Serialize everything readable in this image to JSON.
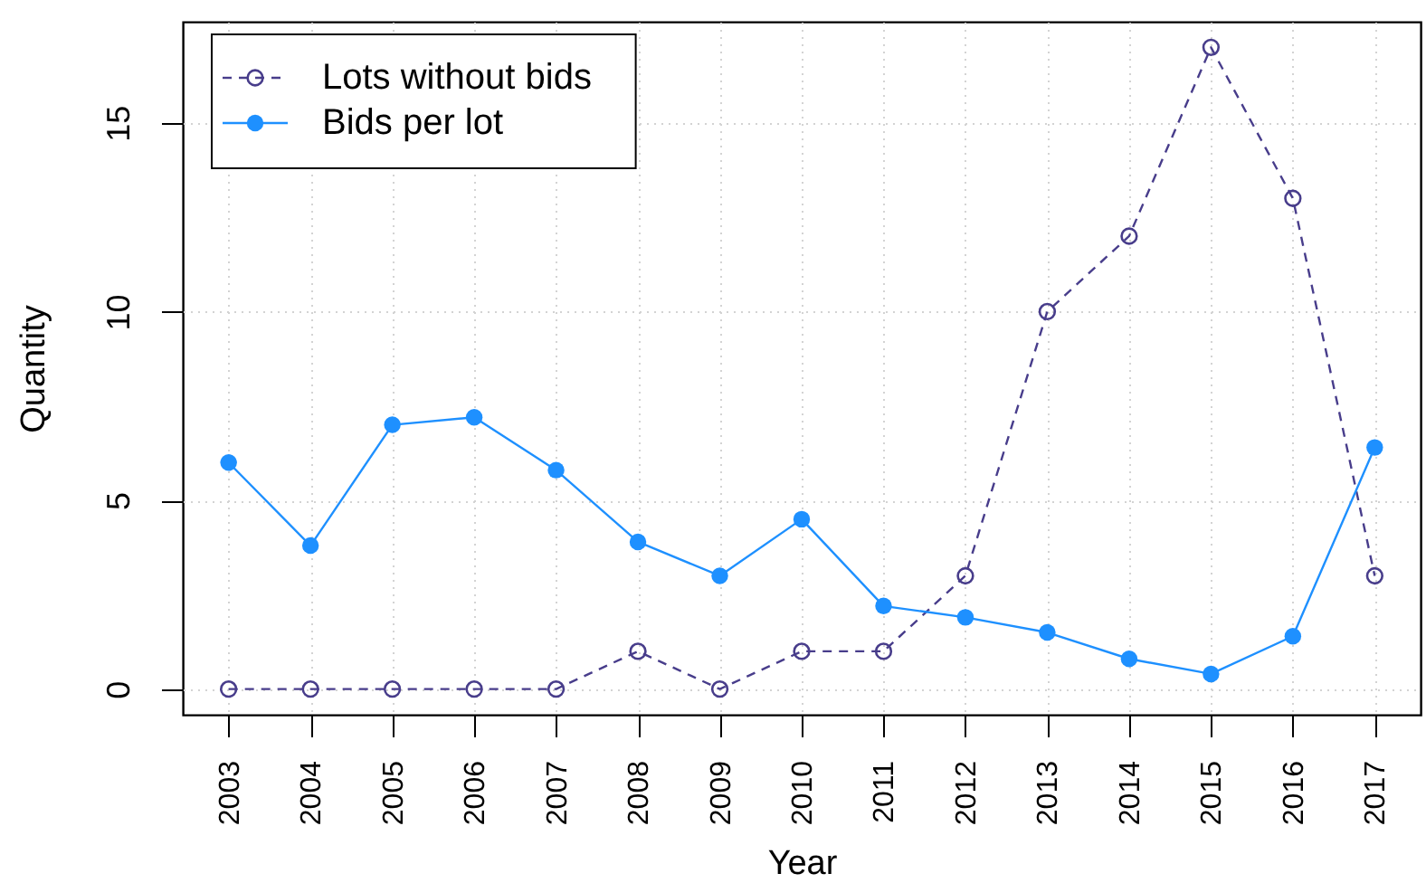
{
  "chart_data": {
    "type": "line",
    "xlabel": "Year",
    "ylabel": "Quantity",
    "x": [
      2003,
      2004,
      2005,
      2006,
      2007,
      2008,
      2009,
      2010,
      2011,
      2012,
      2013,
      2014,
      2015,
      2016,
      2017
    ],
    "xlim": [
      2002.44,
      2017.56
    ],
    "xticks": [
      2003,
      2004,
      2005,
      2006,
      2007,
      2008,
      2009,
      2010,
      2011,
      2012,
      2013,
      2014,
      2015,
      2016,
      2017
    ],
    "ylim": [
      -0.68,
      17.68
    ],
    "yticks": [
      0,
      5,
      10,
      15
    ],
    "grid": true,
    "legend": "top left",
    "marker": "circle",
    "series": [
      {
        "name": "Lots without bids",
        "color": "#483d8b",
        "line_style": "dashed",
        "values": [
          0,
          0,
          0,
          0,
          0,
          1,
          0,
          1,
          1,
          3,
          10,
          12,
          17,
          13,
          3
        ]
      },
      {
        "name": "Bids per lot",
        "color": "#1e90ff",
        "line_style": "solid",
        "values": [
          6.0,
          3.8,
          7.0,
          7.2,
          5.8,
          3.9,
          3.0,
          4.5,
          2.2,
          1.9,
          1.5,
          0.8,
          0.4,
          1.4,
          6.4
        ]
      }
    ]
  }
}
